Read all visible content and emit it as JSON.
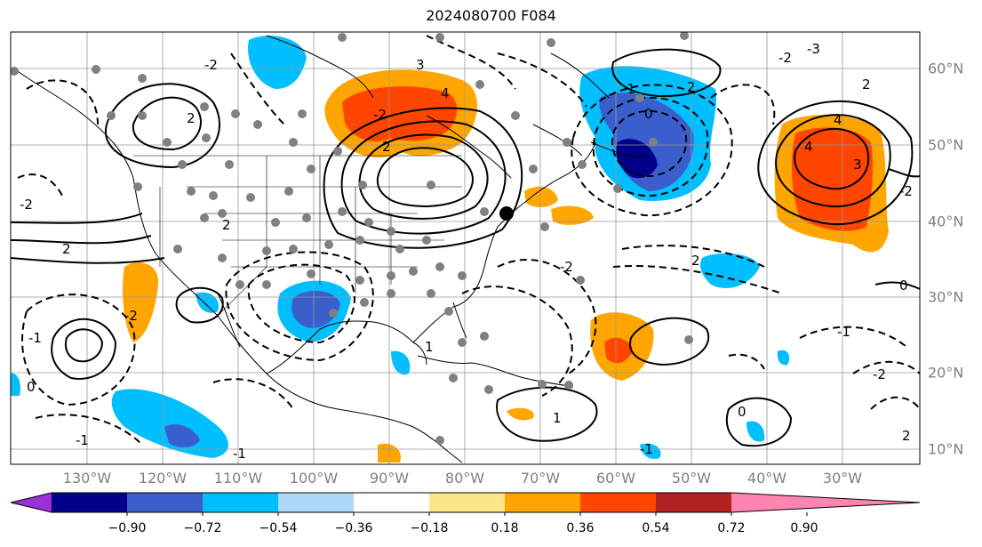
{
  "title": "2024080700 F084",
  "longitude_labels": [
    "130°W",
    "120°W",
    "110°W",
    "100°W",
    "90°W",
    "80°W",
    "70°W",
    "60°W",
    "50°W",
    "40°W",
    "30°W"
  ],
  "latitude_labels": [
    "60°N",
    "50°N",
    "40°N",
    "30°N",
    "20°N",
    "10°N"
  ],
  "colorbar": {
    "tick_labels": [
      "−0.90",
      "−0.72",
      "−0.54",
      "−0.36",
      "−0.18",
      "0.18",
      "0.36",
      "0.54",
      "0.72",
      "0.90"
    ],
    "colors": [
      "#9b30d8",
      "#00008b",
      "#3a5fcd",
      "#00bfff",
      "#add8f8",
      "#ffffff",
      "#fde68a",
      "#ffa500",
      "#ff4500",
      "#b22222",
      "#ff85b0"
    ]
  },
  "contour_labels": [
    "-2",
    "-1",
    "0",
    "2",
    "3",
    "4",
    "-2",
    "2",
    "0",
    "2",
    "-1",
    "-2",
    "-3",
    "2",
    "4",
    "-2",
    "0",
    "2",
    "-1",
    "-2",
    "2",
    "-1",
    "1",
    "0",
    "-2",
    "2",
    "3",
    "4",
    "-1",
    "-2",
    "1",
    "2",
    "-2",
    "-1"
  ],
  "legend_marker": "black dot"
}
